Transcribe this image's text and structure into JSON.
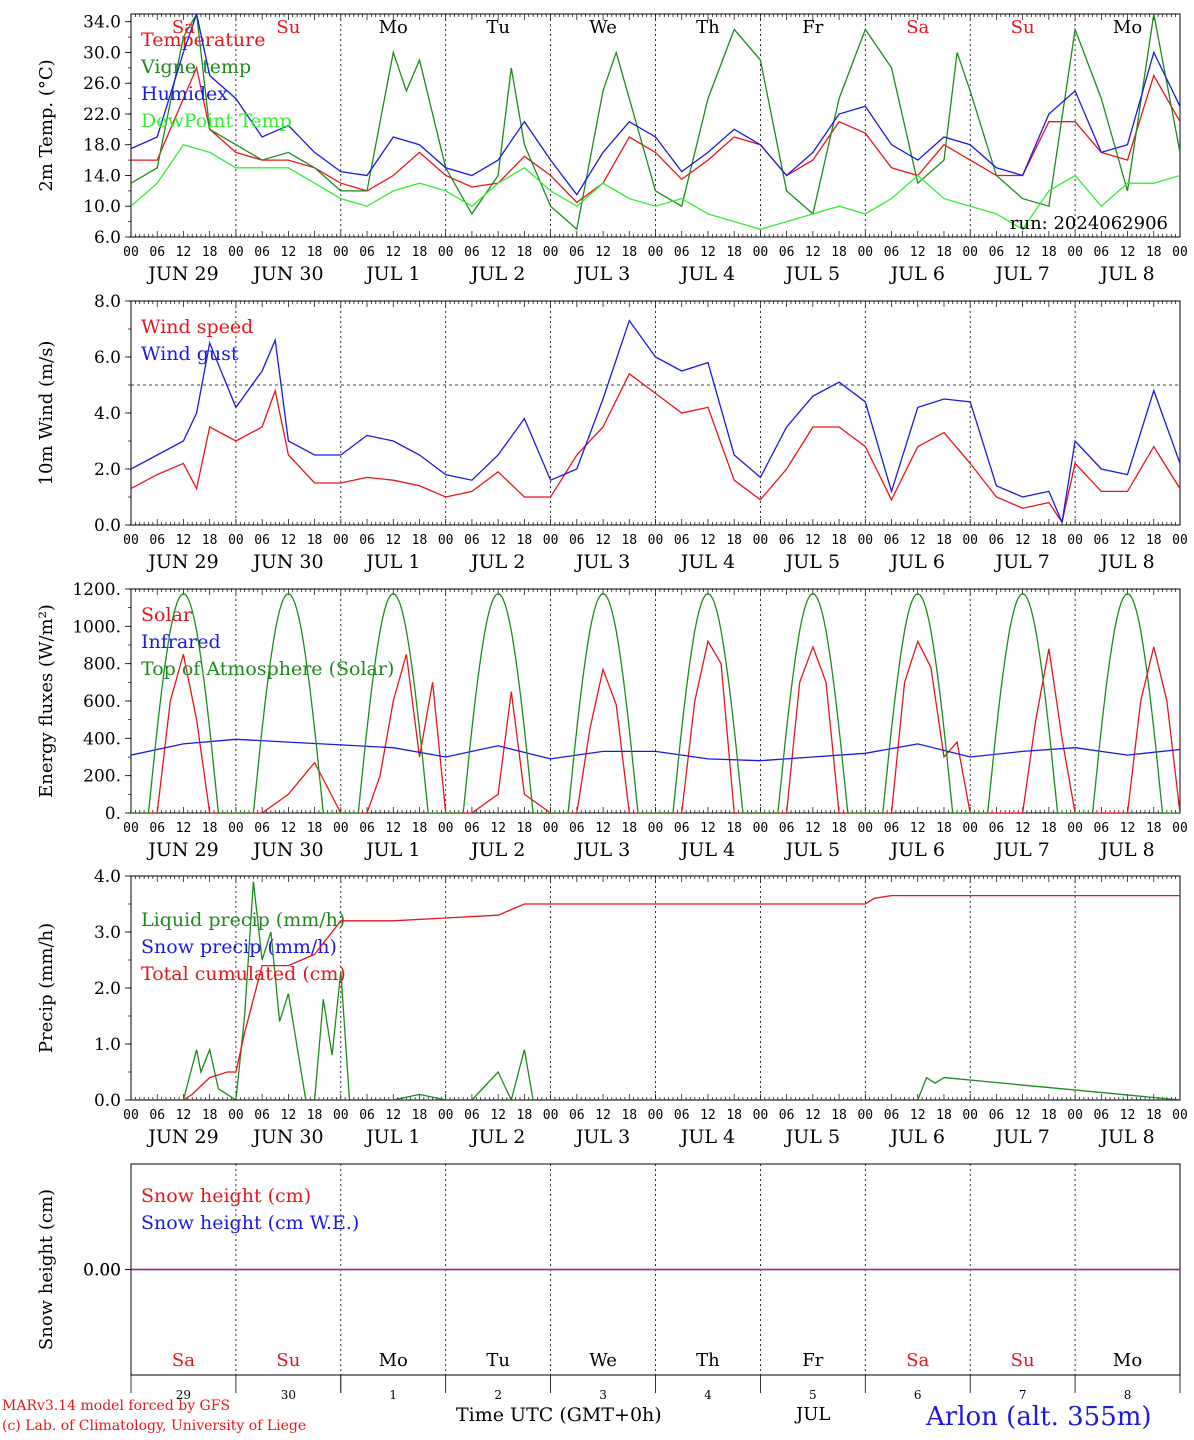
{
  "run_label": "run: 2024062906",
  "day_names": [
    "Sa",
    "Su",
    "Mo",
    "Tu",
    "We",
    "Th",
    "Fr",
    "Sa",
    "Su",
    "Mo"
  ],
  "weekend_flags": [
    true,
    true,
    false,
    false,
    false,
    false,
    false,
    true,
    true,
    false
  ],
  "date_labels": [
    "JUN 29",
    "JUN 30",
    "JUL  1",
    "JUL  2",
    "JUL  3",
    "JUL  4",
    "JUL  5",
    "JUL  6",
    "JUL  7",
    "JUL  8"
  ],
  "hour_ticks": [
    "00",
    "06",
    "12",
    "18"
  ],
  "bottom_day_numbers": [
    "29",
    "30",
    "1",
    "2",
    "3",
    "4",
    "5",
    "6",
    "7",
    "8"
  ],
  "bottom_month": "JUL",
  "xlabel": "Time UTC (GMT+0h)",
  "footer": {
    "line1": "MARv3.14 model forced by GFS",
    "line2": "(c) Lab. of Climatology, University of Liege",
    "station": "Arlon (alt. 355m)"
  },
  "colors": {
    "red": "#e8141c",
    "green": "#1e8a1e",
    "blue": "#1a1ae0",
    "lightgreen": "#33ee33",
    "purple": "#8a3c8a",
    "axis": "#000000"
  },
  "chart_data": [
    {
      "type": "line",
      "ylabel": "2m Temp. (°C)",
      "ylim": [
        6,
        35
      ],
      "yticks": [
        "6.0",
        "10.0",
        "14.0",
        "18.0",
        "22.0",
        "26.0",
        "30.0",
        "34.0"
      ],
      "x_unit": "hours since JUN 29 00 UTC",
      "series": [
        {
          "name": "Temperature",
          "color": "red",
          "x": [
            0,
            6,
            12,
            15,
            18,
            24,
            30,
            36,
            42,
            48,
            54,
            60,
            66,
            72,
            78,
            84,
            90,
            96,
            102,
            108,
            114,
            120,
            126,
            132,
            138,
            144,
            150,
            156,
            162,
            168,
            174,
            180,
            186,
            192,
            198,
            204,
            210,
            216,
            222,
            228,
            234,
            240
          ],
          "y": [
            16,
            16,
            24,
            28,
            20,
            17,
            16,
            16,
            15,
            13,
            12,
            14,
            17,
            14,
            12.5,
            13,
            16.5,
            14,
            10.5,
            13,
            19,
            17,
            13.5,
            16,
            19,
            18,
            14,
            16,
            21,
            19.5,
            15,
            14,
            18,
            16,
            14,
            14,
            21,
            21,
            17,
            16,
            27,
            21
          ]
        },
        {
          "name": "Vigne temp",
          "color": "green",
          "x": [
            0,
            6,
            12,
            15,
            18,
            24,
            30,
            36,
            42,
            48,
            54,
            60,
            63,
            66,
            72,
            78,
            84,
            87,
            90,
            96,
            102,
            108,
            111,
            114,
            120,
            126,
            132,
            138,
            144,
            150,
            156,
            162,
            168,
            174,
            180,
            186,
            189,
            192,
            198,
            204,
            210,
            216,
            222,
            228,
            234,
            240
          ],
          "y": [
            13,
            15,
            32,
            35,
            20,
            18,
            16,
            17,
            15,
            12,
            12,
            30,
            25,
            29,
            15,
            9,
            14,
            28,
            18,
            10,
            7,
            25,
            30,
            24,
            12,
            10,
            24,
            33,
            29,
            12,
            9,
            24,
            33,
            28,
            13,
            16,
            30,
            25,
            14,
            11,
            10,
            33,
            24,
            12,
            35,
            17
          ]
        },
        {
          "name": "Humidex",
          "color": "blue",
          "x": [
            0,
            6,
            12,
            15,
            18,
            24,
            30,
            36,
            42,
            48,
            54,
            60,
            66,
            72,
            78,
            84,
            90,
            96,
            102,
            108,
            114,
            120,
            126,
            132,
            138,
            144,
            150,
            156,
            162,
            168,
            174,
            180,
            186,
            192,
            198,
            204,
            210,
            216,
            222,
            228,
            234,
            240
          ],
          "y": [
            17.5,
            19,
            30,
            35,
            27,
            24,
            19,
            20.5,
            17,
            14.5,
            14,
            19,
            18,
            15,
            14,
            16,
            21,
            16,
            11.5,
            17,
            21,
            19,
            14.5,
            17,
            20,
            18,
            14,
            17,
            22,
            23,
            18,
            16,
            19,
            18,
            15,
            14,
            22,
            25,
            17,
            18,
            30,
            23
          ]
        },
        {
          "name": "DewPoint Temp",
          "color": "lightgreen",
          "x": [
            0,
            6,
            12,
            18,
            24,
            30,
            36,
            42,
            48,
            54,
            60,
            66,
            72,
            78,
            84,
            90,
            96,
            102,
            108,
            114,
            120,
            126,
            132,
            138,
            144,
            150,
            156,
            162,
            168,
            174,
            180,
            186,
            192,
            198,
            204,
            210,
            216,
            222,
            228,
            234,
            240
          ],
          "y": [
            10,
            13,
            18,
            17,
            15,
            15,
            15,
            13,
            11,
            10,
            12,
            13,
            12,
            10,
            13,
            15,
            12,
            10,
            13,
            11,
            10,
            11,
            9,
            8,
            7,
            8,
            9,
            10,
            9,
            11,
            14,
            11,
            10,
            9,
            7,
            12,
            14,
            10,
            13,
            13,
            14
          ]
        }
      ]
    },
    {
      "type": "line",
      "ylabel": "10m Wind (m/s)",
      "ylim": [
        0,
        8
      ],
      "yticks": [
        "0.0",
        "2.0",
        "4.0",
        "6.0",
        "8.0"
      ],
      "reference_line": 5,
      "series": [
        {
          "name": "Wind speed",
          "color": "red",
          "x": [
            0,
            6,
            12,
            15,
            18,
            24,
            30,
            33,
            36,
            42,
            48,
            54,
            60,
            66,
            72,
            78,
            84,
            90,
            96,
            102,
            108,
            114,
            120,
            126,
            132,
            138,
            144,
            150,
            156,
            162,
            168,
            174,
            180,
            186,
            192,
            198,
            204,
            210,
            213,
            216,
            222,
            228,
            234,
            240
          ],
          "y": [
            1.3,
            1.8,
            2.2,
            1.3,
            3.5,
            3,
            3.5,
            4.8,
            2.5,
            1.5,
            1.5,
            1.7,
            1.6,
            1.4,
            1,
            1.2,
            1.9,
            1,
            1,
            2.5,
            3.5,
            5.4,
            4.7,
            4.0,
            4.2,
            1.6,
            0.9,
            2,
            3.5,
            3.5,
            2.8,
            0.9,
            2.8,
            3.3,
            2.2,
            1,
            0.6,
            0.8,
            0.1,
            2.2,
            1.2,
            1.2,
            2.8,
            1.3
          ]
        },
        {
          "name": "Wind gust",
          "color": "blue",
          "x": [
            0,
            6,
            12,
            15,
            18,
            24,
            30,
            33,
            36,
            42,
            48,
            54,
            60,
            66,
            72,
            78,
            84,
            90,
            96,
            102,
            108,
            114,
            120,
            126,
            132,
            138,
            144,
            150,
            156,
            162,
            168,
            174,
            180,
            186,
            192,
            198,
            204,
            210,
            213,
            216,
            222,
            228,
            234,
            240
          ],
          "y": [
            2,
            2.5,
            3,
            4,
            6.5,
            4.2,
            5.5,
            6.6,
            3,
            2.5,
            2.5,
            3.2,
            3,
            2.5,
            1.8,
            1.6,
            2.5,
            3.8,
            1.6,
            2,
            4.5,
            7.3,
            6,
            5.5,
            5.8,
            2.5,
            1.7,
            3.5,
            4.6,
            5.1,
            4.4,
            1.2,
            4.2,
            4.5,
            4.4,
            1.4,
            1.0,
            1.2,
            0.1,
            3,
            2,
            1.8,
            4.8,
            2.2
          ]
        }
      ]
    },
    {
      "type": "line",
      "ylabel": "Energy fluxes (W/m²)",
      "ylim": [
        0,
        1200
      ],
      "yticks": [
        "0.",
        "200.",
        "400.",
        "600.",
        "800.",
        "1000.",
        "1200."
      ],
      "series": [
        {
          "name": "Solar",
          "color": "red",
          "x": [
            0,
            6,
            9,
            12,
            15,
            18,
            24,
            30,
            36,
            42,
            48,
            54,
            57,
            60,
            63,
            66,
            69,
            72,
            78,
            84,
            87,
            90,
            96,
            102,
            105,
            108,
            111,
            114,
            120,
            126,
            129,
            132,
            135,
            138,
            144,
            150,
            153,
            156,
            159,
            162,
            168,
            174,
            177,
            180,
            183,
            186,
            189,
            192,
            198,
            204,
            207,
            210,
            213,
            216,
            222,
            228,
            231,
            234,
            237,
            240
          ],
          "y": [
            0,
            0,
            600,
            850,
            500,
            0,
            0,
            0,
            100,
            270,
            0,
            0,
            200,
            600,
            850,
            300,
            700,
            0,
            0,
            100,
            650,
            100,
            0,
            0,
            450,
            770,
            580,
            0,
            0,
            0,
            600,
            920,
            800,
            0,
            0,
            0,
            700,
            890,
            700,
            0,
            0,
            0,
            700,
            920,
            780,
            300,
            380,
            0,
            0,
            0,
            500,
            880,
            400,
            0,
            0,
            0,
            600,
            890,
            600,
            0
          ]
        },
        {
          "name": "Infrared",
          "color": "blue",
          "x": [
            0,
            12,
            24,
            36,
            48,
            60,
            72,
            84,
            96,
            108,
            120,
            132,
            144,
            156,
            168,
            180,
            192,
            204,
            216,
            228,
            240
          ],
          "y": [
            310,
            370,
            395,
            380,
            365,
            350,
            300,
            360,
            290,
            330,
            330,
            290,
            280,
            300,
            320,
            370,
            300,
            330,
            350,
            310,
            340
          ]
        },
        {
          "name": "Top of Atmosphere (Solar)",
          "color": "green",
          "peaks_at_hour": 12,
          "daylight_hours": [
            4,
            20
          ],
          "peak_value": 1175
        }
      ]
    },
    {
      "type": "line",
      "ylabel": "Precip (mm/h)",
      "ylim": [
        0,
        4
      ],
      "yticks": [
        "0.0",
        "1.0",
        "2.0",
        "3.0",
        "4.0"
      ],
      "series": [
        {
          "name": "Liquid precip (mm/h)",
          "color": "green",
          "x": [
            0,
            12,
            15,
            16,
            18,
            20,
            22,
            24,
            26,
            28,
            30,
            32,
            34,
            36,
            40,
            42,
            44,
            46,
            48,
            50,
            60,
            66,
            72,
            78,
            84,
            87,
            90,
            92,
            96,
            120,
            132,
            180,
            182,
            184,
            186,
            240
          ],
          "y": [
            0,
            0,
            0.9,
            0.5,
            0.9,
            0.2,
            0.1,
            0,
            1.5,
            3.9,
            2.5,
            3,
            1.4,
            1.9,
            0,
            0,
            1.8,
            0.8,
            2.3,
            0,
            0,
            0.1,
            0,
            0,
            0.5,
            0,
            0.9,
            0,
            0,
            0,
            0,
            0,
            0.4,
            0.3,
            0.4,
            0
          ]
        },
        {
          "name": "Snow precip (mm/h)",
          "color": "blue",
          "x": [
            0,
            240
          ],
          "y": [
            0,
            0
          ]
        },
        {
          "name": "Total cumulated (cm)",
          "color": "red",
          "x": [
            0,
            12,
            14,
            18,
            22,
            24,
            26,
            30,
            36,
            42,
            48,
            60,
            72,
            84,
            90,
            96,
            108,
            120,
            132,
            168,
            170,
            174,
            240
          ],
          "y": [
            0,
            0,
            0.1,
            0.4,
            0.5,
            0.5,
            1.2,
            2.4,
            2.4,
            2.6,
            3.2,
            3.2,
            3.25,
            3.3,
            3.5,
            3.5,
            3.5,
            3.5,
            3.5,
            3.5,
            3.6,
            3.65,
            3.65
          ]
        }
      ]
    },
    {
      "type": "line",
      "ylabel": "Snow height (cm)",
      "yticks": [
        "0.00"
      ],
      "series": [
        {
          "name": "Snow height (cm)",
          "color": "red",
          "x": [
            0,
            240
          ],
          "y": [
            0,
            0
          ]
        },
        {
          "name": "Snow height (cm W.E.)",
          "color": "blue",
          "x": [
            0,
            240
          ],
          "y": [
            0,
            0
          ]
        }
      ]
    }
  ]
}
